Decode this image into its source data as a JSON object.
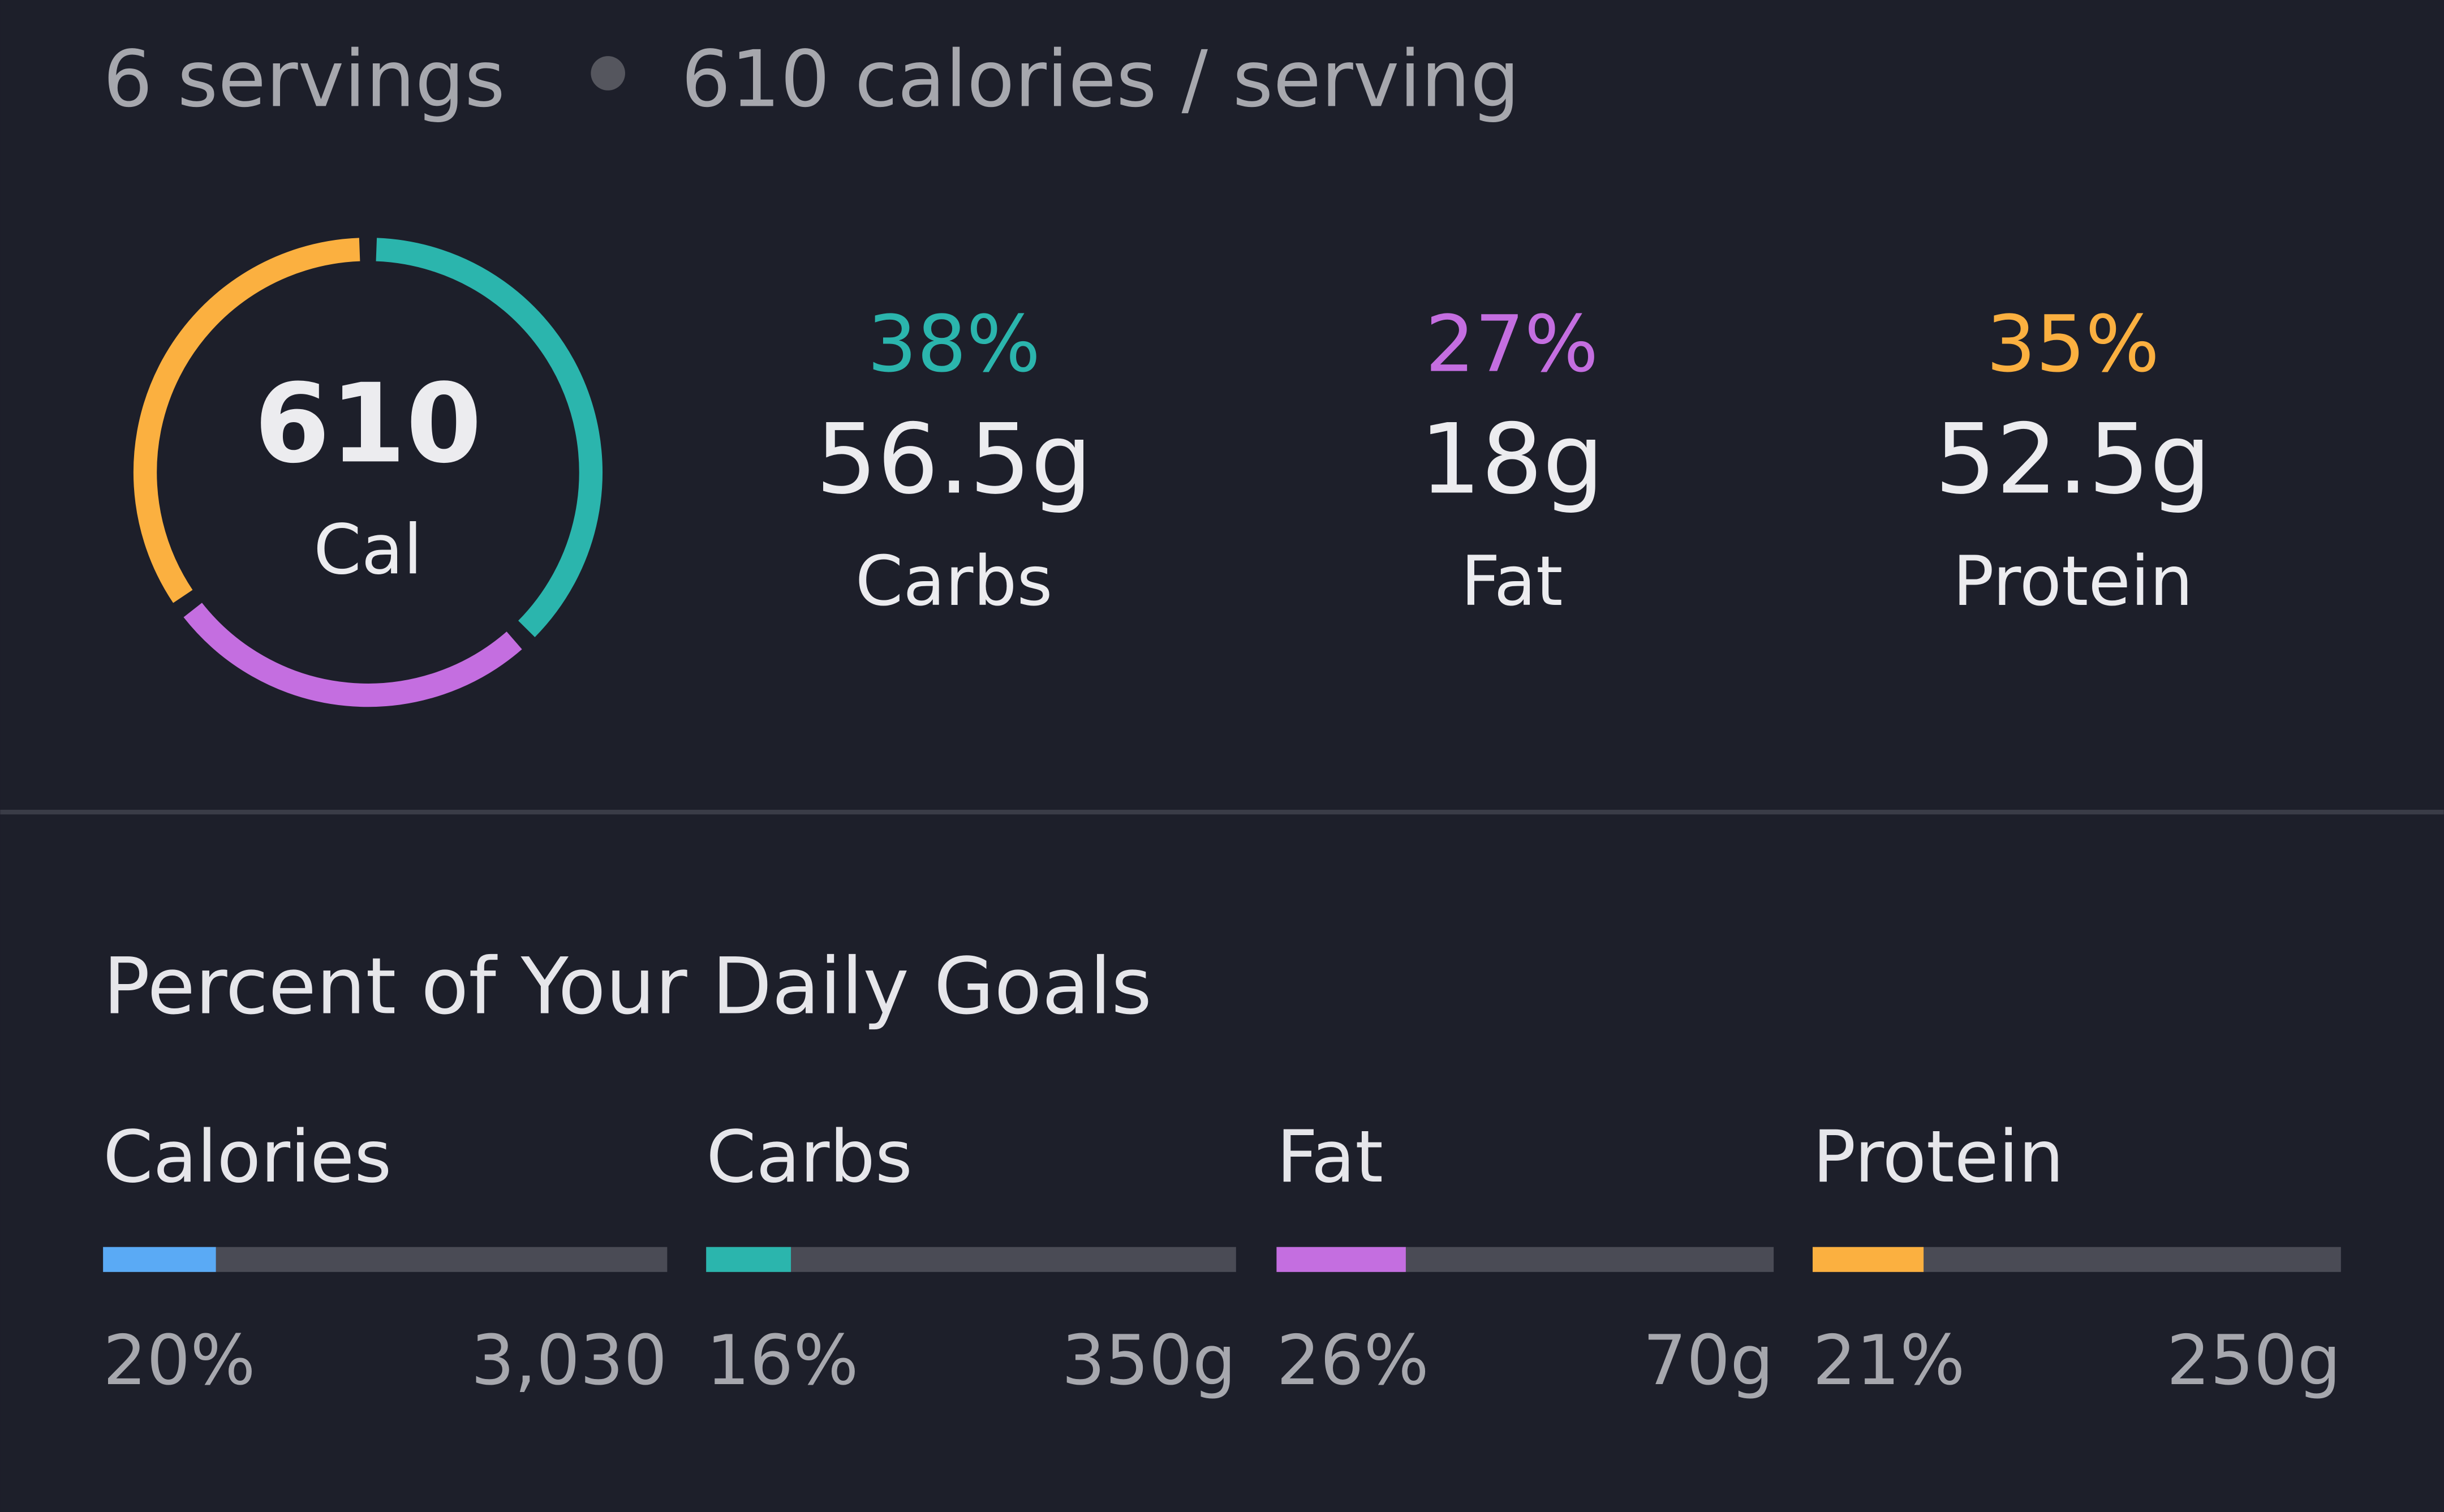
{
  "header": {
    "servings": "6 servings",
    "calories": "610 calories / serving"
  },
  "summary": {
    "calories": "610",
    "unit": "Cal"
  },
  "macros": [
    {
      "name": "Carbs",
      "percent": {
        "value": 38,
        "label": "38%"
      },
      "amount": "56.5g",
      "color": "#2bb5ad"
    },
    {
      "name": "Fat",
      "percent": {
        "value": 27,
        "label": "27%"
      },
      "amount": "18g",
      "color": "#c46ee0"
    },
    {
      "name": "Protein",
      "percent": {
        "value": 35,
        "label": "35%"
      },
      "amount": "52.5g",
      "color": "#fbb040"
    }
  ],
  "goals": {
    "title": "Percent of Your Daily Goals",
    "items": [
      {
        "name": "Calories",
        "percent": {
          "value": 20,
          "label": "20%"
        },
        "target": "3,030",
        "color": "#5aaaf5"
      },
      {
        "name": "Carbs",
        "percent": {
          "value": 16,
          "label": "16%"
        },
        "target": "350g",
        "color": "#2bb5ad"
      },
      {
        "name": "Fat",
        "percent": {
          "value": 26,
          "label": "26%"
        },
        "target": "70g",
        "color": "#c46ee0"
      },
      {
        "name": "Protein",
        "percent": {
          "value": 21,
          "label": "21%"
        },
        "target": "250g",
        "color": "#fbb040"
      }
    ]
  }
}
